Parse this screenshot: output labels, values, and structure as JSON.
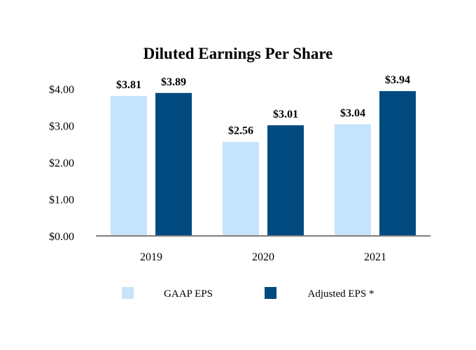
{
  "chart_data": {
    "type": "bar",
    "title": "Diluted Earnings Per Share",
    "xlabel": "",
    "ylabel": "",
    "categories": [
      "2019",
      "2020",
      "2021"
    ],
    "series": [
      {
        "name": "GAAP EPS",
        "color": "#c5e4fb",
        "values": [
          3.81,
          2.56,
          3.04
        ],
        "labels": [
          "$3.81",
          "$2.56",
          "$3.04"
        ]
      },
      {
        "name": "Adjusted EPS *",
        "color": "#004a80",
        "values": [
          3.89,
          3.01,
          3.94
        ],
        "labels": [
          "$3.89",
          "$3.01",
          "$3.94"
        ]
      }
    ],
    "ylim": [
      0,
      4
    ],
    "yticks": [
      0,
      1,
      2,
      3,
      4
    ],
    "ytick_labels": [
      "$0.00",
      "$1.00",
      "$2.00",
      "$3.00",
      "$4.00"
    ],
    "grid": false,
    "legend": "bottom",
    "axis_color": "#7f7f7f"
  }
}
